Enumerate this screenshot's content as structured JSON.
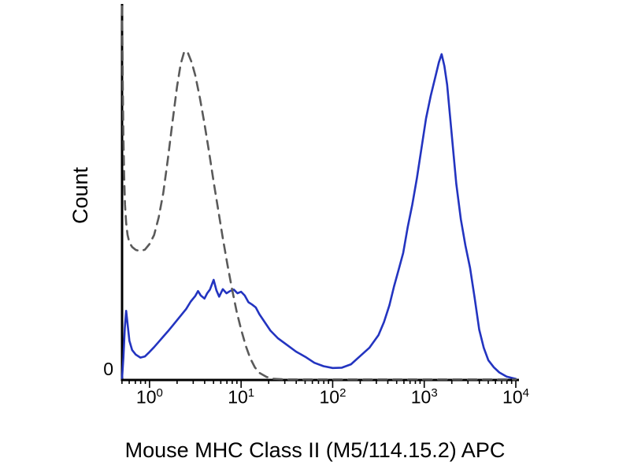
{
  "y_axis": {
    "label": "Count",
    "zero_label": "0"
  },
  "x_axis": {
    "ticks": [
      {
        "base": "10",
        "exp": "0"
      },
      {
        "base": "10",
        "exp": "1"
      },
      {
        "base": "10",
        "exp": "2"
      },
      {
        "base": "10",
        "exp": "3"
      },
      {
        "base": "10",
        "exp": "4"
      }
    ]
  },
  "chart_data": {
    "type": "line",
    "title": "",
    "xlabel": "Mouse MHC Class II (M5/114.15.2) APC",
    "ylabel": "Count",
    "x_scale": "log10",
    "xlim_log10": [
      -0.3,
      4
    ],
    "ylim": [
      0,
      100
    ],
    "grid": false,
    "legend": "none",
    "series": [
      {
        "name": "solid-blue-stained",
        "style": "solid",
        "color": "#2334c0",
        "points_log10x_y": [
          [
            -0.3,
            0.5
          ],
          [
            -0.285,
            6
          ],
          [
            -0.27,
            14
          ],
          [
            -0.255,
            18.5
          ],
          [
            -0.24,
            15
          ],
          [
            -0.22,
            10.5
          ],
          [
            -0.19,
            8
          ],
          [
            -0.15,
            6.8
          ],
          [
            -0.1,
            6.0
          ],
          [
            -0.05,
            6.3
          ],
          [
            0.0,
            7.5
          ],
          [
            0.05,
            8.8
          ],
          [
            0.1,
            10.2
          ],
          [
            0.15,
            11.6
          ],
          [
            0.2,
            13
          ],
          [
            0.25,
            14.5
          ],
          [
            0.3,
            16
          ],
          [
            0.35,
            17.5
          ],
          [
            0.4,
            19
          ],
          [
            0.45,
            21
          ],
          [
            0.5,
            22.5
          ],
          [
            0.53,
            23.8
          ],
          [
            0.56,
            22.6
          ],
          [
            0.6,
            21.8
          ],
          [
            0.63,
            23.2
          ],
          [
            0.66,
            24.2
          ],
          [
            0.7,
            26.8
          ],
          [
            0.73,
            24
          ],
          [
            0.76,
            22.3
          ],
          [
            0.8,
            24.3
          ],
          [
            0.84,
            23.2
          ],
          [
            0.88,
            23.8
          ],
          [
            0.92,
            24.2
          ],
          [
            0.96,
            23.2
          ],
          [
            1.0,
            23.6
          ],
          [
            1.04,
            22.6
          ],
          [
            1.08,
            20.8
          ],
          [
            1.12,
            20.2
          ],
          [
            1.16,
            19.4
          ],
          [
            1.2,
            17.6
          ],
          [
            1.26,
            15.4
          ],
          [
            1.32,
            13.2
          ],
          [
            1.4,
            11.2
          ],
          [
            1.5,
            9.4
          ],
          [
            1.6,
            7.6
          ],
          [
            1.7,
            6.2
          ],
          [
            1.8,
            4.6
          ],
          [
            1.9,
            3.7
          ],
          [
            2.0,
            3.2
          ],
          [
            2.1,
            3.3
          ],
          [
            2.2,
            4.2
          ],
          [
            2.3,
            6.4
          ],
          [
            2.4,
            8.6
          ],
          [
            2.5,
            12
          ],
          [
            2.56,
            15.5
          ],
          [
            2.62,
            20
          ],
          [
            2.67,
            25
          ],
          [
            2.72,
            29.5
          ],
          [
            2.77,
            34
          ],
          [
            2.82,
            41
          ],
          [
            2.87,
            47
          ],
          [
            2.92,
            54
          ],
          [
            2.97,
            62
          ],
          [
            3.02,
            70
          ],
          [
            3.07,
            76
          ],
          [
            3.12,
            81
          ],
          [
            3.16,
            85
          ],
          [
            3.19,
            87.2
          ],
          [
            3.22,
            84
          ],
          [
            3.25,
            79
          ],
          [
            3.28,
            71
          ],
          [
            3.31,
            63
          ],
          [
            3.35,
            52.5
          ],
          [
            3.4,
            43
          ],
          [
            3.45,
            36
          ],
          [
            3.5,
            30
          ],
          [
            3.55,
            22
          ],
          [
            3.6,
            13.5
          ],
          [
            3.65,
            8.6
          ],
          [
            3.7,
            5.3
          ],
          [
            3.76,
            3.4
          ],
          [
            3.82,
            2.0
          ],
          [
            3.9,
            0.9
          ],
          [
            4.0,
            0.3
          ]
        ]
      },
      {
        "name": "dashed-gray-control",
        "style": "dashed",
        "color": "#5a5a5a",
        "points_log10x_y": [
          [
            -0.3,
            100
          ],
          [
            -0.296,
            90
          ],
          [
            -0.292,
            79
          ],
          [
            -0.286,
            66
          ],
          [
            -0.278,
            55
          ],
          [
            -0.268,
            47
          ],
          [
            -0.255,
            42
          ],
          [
            -0.24,
            38.8
          ],
          [
            -0.22,
            36.8
          ],
          [
            -0.19,
            35.6
          ],
          [
            -0.15,
            34.8
          ],
          [
            -0.1,
            34.5
          ],
          [
            -0.05,
            34.9
          ],
          [
            0.0,
            36.4
          ],
          [
            0.05,
            38.8
          ],
          [
            0.1,
            43.5
          ],
          [
            0.15,
            50
          ],
          [
            0.2,
            59
          ],
          [
            0.25,
            69
          ],
          [
            0.3,
            78.5
          ],
          [
            0.34,
            84.5
          ],
          [
            0.38,
            88
          ],
          [
            0.42,
            87.5
          ],
          [
            0.46,
            85
          ],
          [
            0.5,
            81.5
          ],
          [
            0.55,
            75.5
          ],
          [
            0.6,
            68.5
          ],
          [
            0.65,
            61
          ],
          [
            0.7,
            53
          ],
          [
            0.75,
            45.5
          ],
          [
            0.8,
            38
          ],
          [
            0.85,
            31
          ],
          [
            0.9,
            24.5
          ],
          [
            0.95,
            18.5
          ],
          [
            1.0,
            13.5
          ],
          [
            1.05,
            9.2
          ],
          [
            1.1,
            5.8
          ],
          [
            1.15,
            3.4
          ],
          [
            1.2,
            1.9
          ],
          [
            1.28,
            0.8
          ],
          [
            1.36,
            0.3
          ],
          [
            1.5,
            0.15
          ],
          [
            2.0,
            0.15
          ],
          [
            2.5,
            0.15
          ],
          [
            3.0,
            0.15
          ],
          [
            3.5,
            0.15
          ],
          [
            4.0,
            0.15
          ]
        ]
      }
    ]
  }
}
